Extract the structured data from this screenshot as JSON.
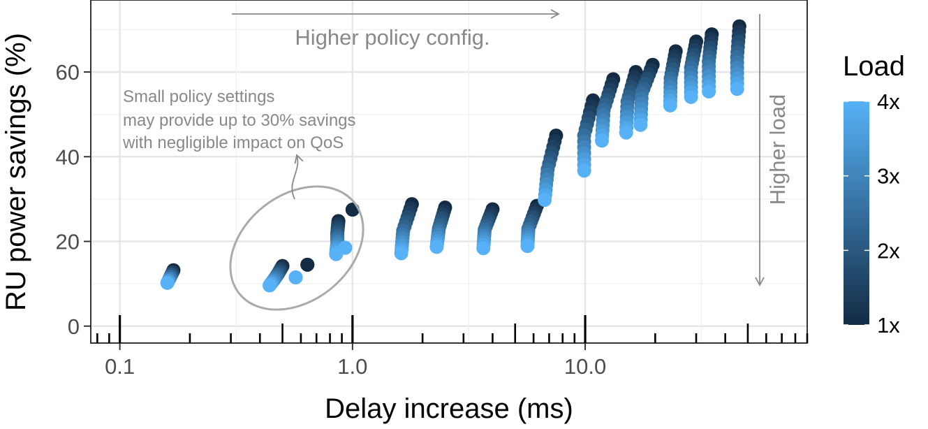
{
  "chart_data": {
    "type": "scatter",
    "title": "",
    "xlabel": "Delay increase (ms)",
    "ylabel": "RU power savings (%)",
    "x_scale": "log",
    "xlim": [
      0.075,
      90
    ],
    "ylim": [
      -4,
      77
    ],
    "x_ticks": [
      0.1,
      1.0,
      10.0
    ],
    "x_tick_labels": [
      "0.1",
      "1.0",
      "10.0"
    ],
    "y_ticks": [
      0,
      20,
      40,
      60
    ],
    "y_tick_labels": [
      "0",
      "20",
      "40",
      "60"
    ],
    "grid": true,
    "legend": {
      "title": "Load",
      "position": "right",
      "type": "colorbar",
      "range": [
        1,
        4
      ],
      "tick_values": [
        1,
        2,
        3,
        4
      ],
      "tick_labels": [
        "1x",
        "2x",
        "3x",
        "4x"
      ],
      "color_low": "#132B43",
      "color_high": "#56B1F7"
    },
    "color_scale": {
      "low": "#132B43",
      "high": "#56B1F7"
    },
    "annotations": {
      "top_arrow_label": "Higher policy config.",
      "right_arrow_label": "Higher load",
      "note_lines": [
        "Small policy settings",
        "may provide up to 30% savings",
        "with negligible impact on QoS"
      ]
    },
    "clusters": [
      {
        "x": [
          0.17,
          0.16
        ],
        "y": [
          13.2,
          10.2
        ],
        "load_range": [
          1,
          4
        ]
      },
      {
        "x": [
          0.5,
          0.48,
          0.46,
          0.44
        ],
        "y": [
          14.2,
          12.5,
          11.0,
          9.6
        ],
        "load_range": [
          1,
          4
        ]
      },
      {
        "x": [
          0.57
        ],
        "y": [
          11.5
        ],
        "load_range": [
          4,
          4
        ]
      },
      {
        "x": [
          0.64
        ],
        "y": [
          14.5
        ],
        "load_range": [
          1,
          1
        ]
      },
      {
        "x": [
          1.0
        ],
        "y": [
          27.5
        ],
        "load_range": [
          1,
          1
        ]
      },
      {
        "x": [
          0.87,
          0.86,
          0.86,
          0.85
        ],
        "y": [
          24.8,
          22.0,
          19.5,
          17.0
        ],
        "load_range": [
          1,
          4
        ]
      },
      {
        "x": [
          0.93
        ],
        "y": [
          18.5
        ],
        "load_range": [
          4,
          4
        ]
      },
      {
        "x": [
          1.8,
          1.65,
          1.62
        ],
        "y": [
          28.8,
          22.5,
          17.2
        ],
        "load_range": [
          1,
          4
        ]
      },
      {
        "x": [
          2.5,
          2.35,
          2.3
        ],
        "y": [
          28.0,
          23.0,
          18.7
        ],
        "load_range": [
          1,
          4
        ]
      },
      {
        "x": [
          4.0,
          3.7,
          3.65
        ],
        "y": [
          27.6,
          22.8,
          18.4
        ],
        "load_range": [
          1,
          4
        ]
      },
      {
        "x": [
          6.2,
          5.7,
          5.65
        ],
        "y": [
          28.4,
          23.0,
          18.9
        ],
        "load_range": [
          1,
          4
        ]
      },
      {
        "x": [
          7.5,
          6.9,
          6.7
        ],
        "y": [
          45.0,
          37.0,
          29.8
        ],
        "load_range": [
          1,
          4
        ]
      },
      {
        "x": [
          10.8,
          9.9,
          9.9
        ],
        "y": [
          53.3,
          45.0,
          36.7
        ],
        "load_range": [
          1,
          4
        ]
      },
      {
        "x": [
          13.2,
          12.0,
          11.8
        ],
        "y": [
          58.3,
          51.0,
          43.8
        ],
        "load_range": [
          1,
          4
        ]
      },
      {
        "x": [
          16.5,
          15.2,
          15.0
        ],
        "y": [
          60.0,
          53.0,
          45.7
        ],
        "load_range": [
          1,
          4
        ]
      },
      {
        "x": [
          19.5,
          17.5,
          17.3
        ],
        "y": [
          61.7,
          55.0,
          47.5
        ],
        "load_range": [
          1,
          4
        ]
      },
      {
        "x": [
          24.5,
          23.3,
          23.2
        ],
        "y": [
          64.9,
          58.5,
          52.1
        ],
        "load_range": [
          1,
          4
        ]
      },
      {
        "x": [
          30.0,
          28.5,
          28.5
        ],
        "y": [
          67.2,
          61.0,
          54.1
        ],
        "load_range": [
          1,
          4
        ]
      },
      {
        "x": [
          35.0,
          34.0,
          34.0
        ],
        "y": [
          68.9,
          62.5,
          55.4
        ],
        "load_range": [
          1,
          4
        ]
      },
      {
        "x": [
          46.0,
          45.0,
          45.0
        ],
        "y": [
          70.8,
          63.5,
          56.0
        ],
        "load_range": [
          1,
          4
        ]
      }
    ]
  }
}
